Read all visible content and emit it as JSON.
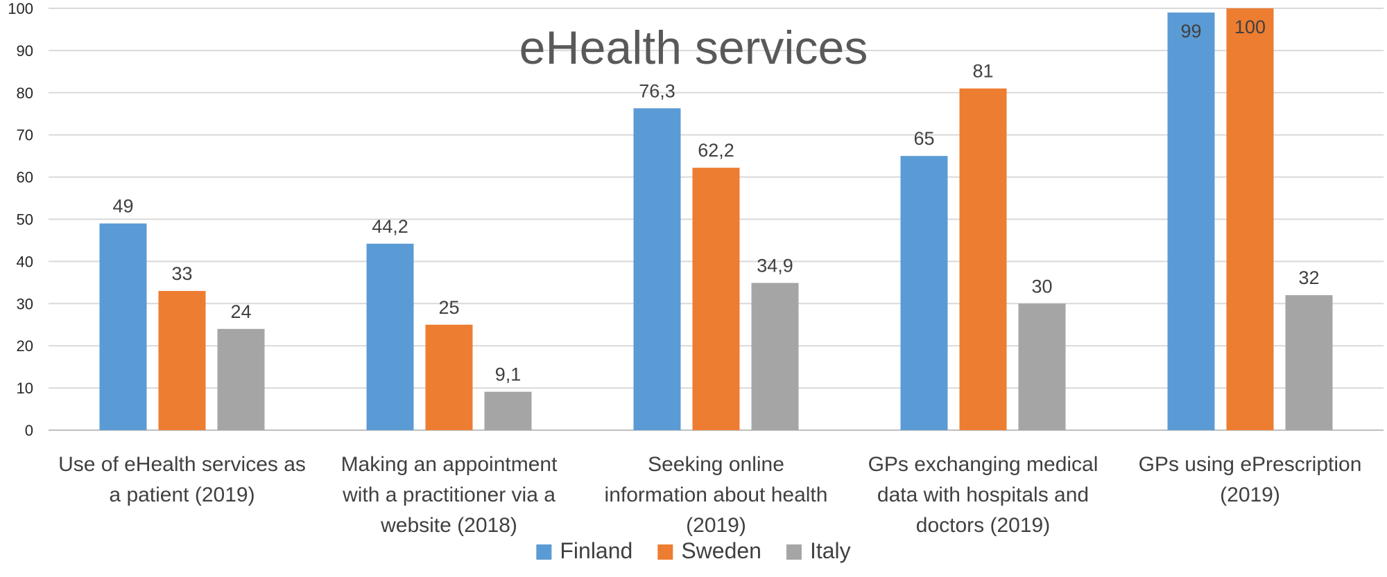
{
  "chart_data": {
    "type": "bar",
    "title": "eHealth services",
    "xlabel": "",
    "ylabel": "",
    "ylim": [
      0,
      100
    ],
    "yticks": [
      "0",
      "10",
      "20",
      "30",
      "40",
      "50",
      "60",
      "70",
      "80",
      "90",
      "100"
    ],
    "grid": true,
    "legend_position": "bottom",
    "categories": [
      [
        "Use of eHealth services as",
        "a patient (2019)"
      ],
      [
        "Making an appointment",
        "with a practitioner via a",
        "website (2018)"
      ],
      [
        "Seeking online",
        "information about health",
        "(2019)"
      ],
      [
        "GPs exchanging medical",
        "data with hospitals and",
        "doctors (2019)"
      ],
      [
        "GPs using ePrescription",
        "(2019)"
      ]
    ],
    "series": [
      {
        "name": "Finland",
        "color": "#5b9bd5",
        "values": [
          49,
          44.2,
          76.3,
          65,
          99
        ],
        "labels": [
          "49",
          "44,2",
          "76,3",
          "65",
          "99"
        ]
      },
      {
        "name": "Sweden",
        "color": "#ed7d31",
        "values": [
          33,
          25,
          62.2,
          81,
          100
        ],
        "labels": [
          "33",
          "25",
          "62,2",
          "81",
          "100"
        ]
      },
      {
        "name": "Italy",
        "color": "#a5a5a5",
        "values": [
          24,
          9.1,
          34.9,
          30,
          32
        ],
        "labels": [
          "24",
          "9,1",
          "34,9",
          "30",
          "32"
        ]
      }
    ]
  }
}
